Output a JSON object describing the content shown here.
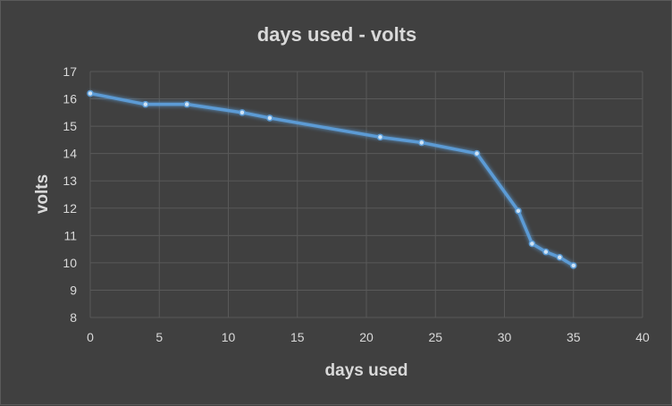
{
  "chart_data": {
    "type": "scatter",
    "title": "days used - volts",
    "xlabel": "days used",
    "ylabel": "volts",
    "xlim": [
      0,
      40
    ],
    "ylim": [
      8,
      17
    ],
    "x_ticks": [
      0,
      5,
      10,
      15,
      20,
      25,
      30,
      35,
      40
    ],
    "y_ticks": [
      8,
      9,
      10,
      11,
      12,
      13,
      14,
      15,
      16,
      17
    ],
    "grid": true,
    "legend": "none",
    "series": [
      {
        "color": "#5b9bd5",
        "x": [
          0,
          4,
          7,
          11,
          13,
          21,
          24,
          28,
          31,
          32,
          33,
          34,
          35
        ],
        "y": [
          16.2,
          15.8,
          15.8,
          15.5,
          15.3,
          14.6,
          14.4,
          14.0,
          11.9,
          10.7,
          10.4,
          10.2,
          9.9
        ]
      }
    ]
  }
}
